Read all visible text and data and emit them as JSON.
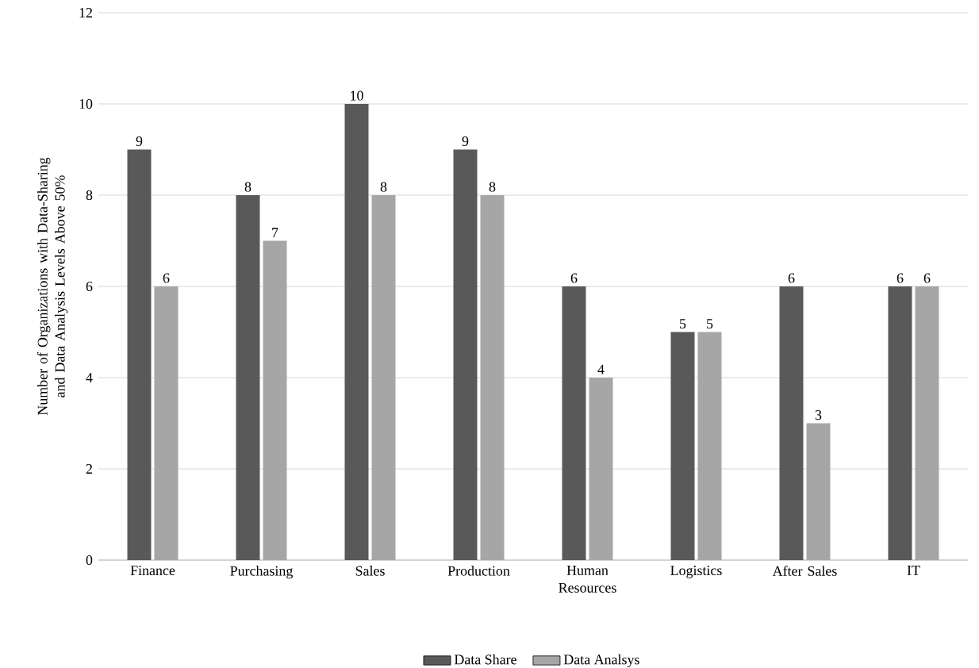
{
  "chart_data": {
    "type": "bar",
    "ylabel": "Number of Organizations with Data-Sharing and Data Analysis Levels Above 50%",
    "categories": [
      "Finance",
      "Purchasing",
      "Sales",
      "Production",
      "Human Resources",
      "Logistics",
      "After Sales",
      "IT"
    ],
    "series": [
      {
        "name": "Data Share",
        "color": "#595959",
        "values": [
          9,
          8,
          10,
          9,
          6,
          5,
          6,
          6
        ]
      },
      {
        "name": "Data Analsys",
        "color": "#a6a6a6",
        "values": [
          6,
          7,
          8,
          8,
          4,
          5,
          3,
          6
        ]
      }
    ],
    "ylim": [
      0,
      12
    ],
    "yticks": [
      0,
      2,
      4,
      6,
      8,
      10,
      12
    ],
    "grid": "y",
    "legend": "bottom",
    "data_labels": true
  }
}
